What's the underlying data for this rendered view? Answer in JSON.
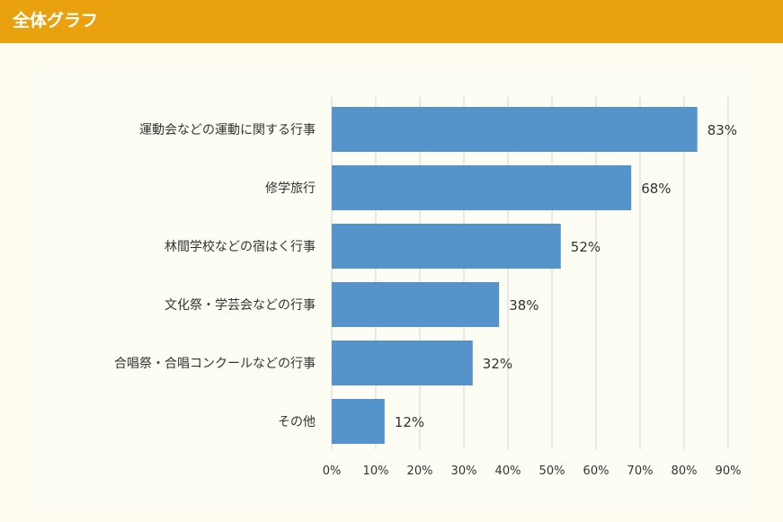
{
  "header": {
    "title": "全体グラフ"
  },
  "colors": {
    "header_bg": "#e9a20e",
    "bar": "#5593cb",
    "grid": "#d4d4d4"
  },
  "chart_data": {
    "type": "bar",
    "orientation": "horizontal",
    "categories": [
      "運動会などの運動に関する行事",
      "修学旅行",
      "林間学校などの宿はく行事",
      "文化祭・学芸会などの行事",
      "合唱祭・合唱コンクールなどの行事",
      "その他"
    ],
    "values": [
      83,
      68,
      52,
      38,
      32,
      12
    ],
    "value_labels": [
      "83%",
      "68%",
      "52%",
      "38%",
      "32%",
      "12%"
    ],
    "xlim": [
      0,
      90
    ],
    "x_ticks": [
      0,
      10,
      20,
      30,
      40,
      50,
      60,
      70,
      80,
      90
    ],
    "x_tick_labels": [
      "0%",
      "10%",
      "20%",
      "30%",
      "40%",
      "50%",
      "60%",
      "70%",
      "80%",
      "90%"
    ],
    "grid": true,
    "legend": false
  }
}
